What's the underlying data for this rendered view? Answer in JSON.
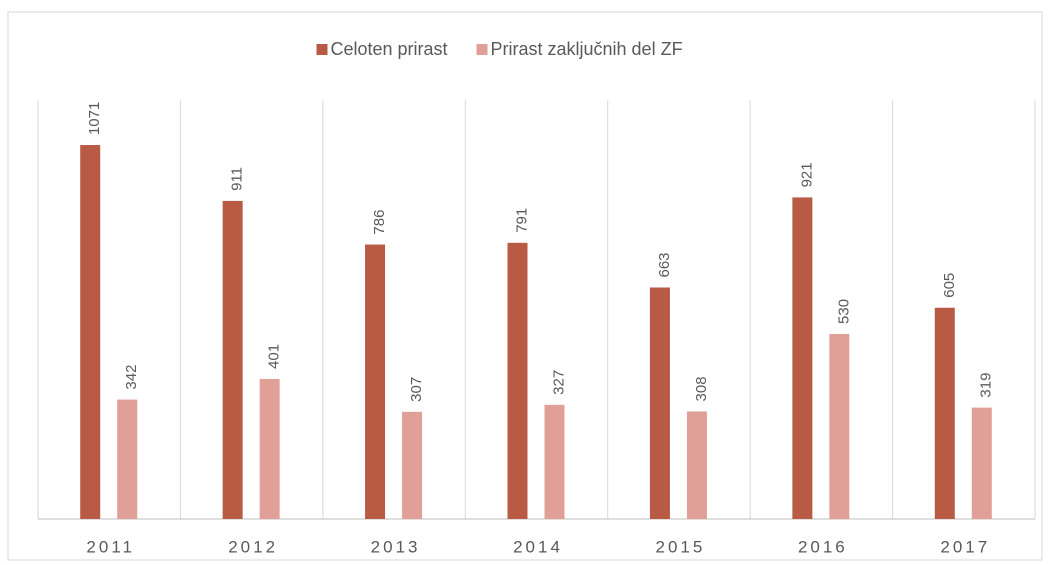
{
  "chart_data": {
    "type": "bar",
    "categories": [
      "2011",
      "2012",
      "2013",
      "2014",
      "2015",
      "2016",
      "2017"
    ],
    "series": [
      {
        "name": "Celoten prirast",
        "color": "#b85a44",
        "values": [
          1071,
          911,
          786,
          791,
          663,
          921,
          605
        ]
      },
      {
        "name": "Prirast zaključnih del ZF",
        "color": "#e0a097",
        "values": [
          342,
          401,
          307,
          327,
          308,
          530,
          319
        ]
      }
    ],
    "ylim": [
      0,
      1200
    ],
    "legend": "top"
  }
}
